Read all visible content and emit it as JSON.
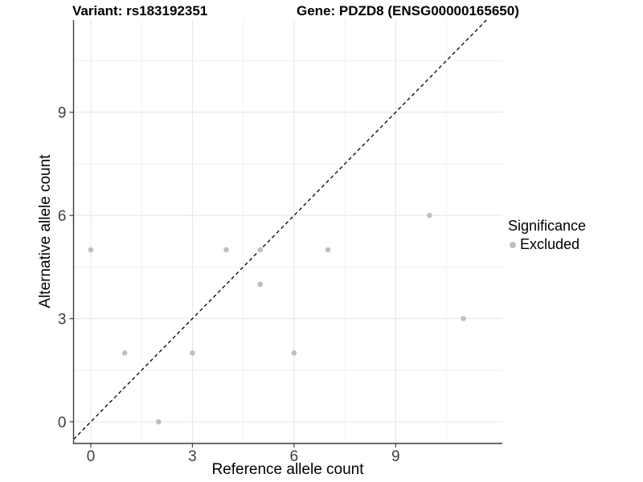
{
  "header": {
    "left_title": "Variant: rs183192351",
    "right_title": "Gene: PDZD8 (ENSG00000165650)"
  },
  "chart_data": {
    "type": "scatter",
    "titles": {
      "variant": "Variant: rs183192351",
      "gene": "Gene: PDZD8 (ENSG00000165650)"
    },
    "xlabel": "Reference allele count",
    "ylabel": "Alternative allele count",
    "x_ticks": [
      0,
      3,
      6,
      9
    ],
    "y_ticks": [
      0,
      3,
      6,
      9
    ],
    "x_minor_ticks": [
      1.5,
      4.5,
      7.5,
      10.5
    ],
    "y_minor_ticks": [
      1.5,
      4.5,
      7.5,
      10.5
    ],
    "xlim": [
      -0.51,
      12.15
    ],
    "ylim": [
      -0.63,
      11.68
    ],
    "grid": true,
    "points": [
      {
        "x": 0,
        "y": 5
      },
      {
        "x": 1,
        "y": 2
      },
      {
        "x": 2,
        "y": 0
      },
      {
        "x": 3,
        "y": 2
      },
      {
        "x": 4,
        "y": 5
      },
      {
        "x": 5,
        "y": 4
      },
      {
        "x": 5,
        "y": 5
      },
      {
        "x": 6,
        "y": 2
      },
      {
        "x": 7,
        "y": 5
      },
      {
        "x": 10,
        "y": 6
      },
      {
        "x": 11,
        "y": 3
      }
    ],
    "series_name": "Excluded",
    "identity_line": {
      "equation": "y = x",
      "style": "dashed",
      "color": "#000000"
    },
    "legend": {
      "title": "Significance",
      "position": "right",
      "items": [
        {
          "label": "Excluded",
          "color": "#bfbfbf"
        }
      ]
    },
    "colors": {
      "point": "#bfbfbf",
      "grid_major": "#e4e4e4",
      "grid_minor": "#f1f1f1",
      "axis_line": "#3c3c3c",
      "tick_label": "#404040"
    }
  }
}
